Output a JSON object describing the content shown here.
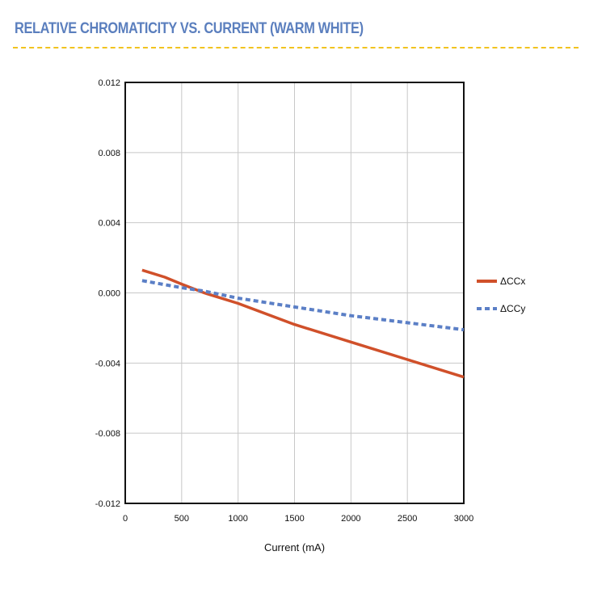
{
  "header": {
    "title": "RELATIVE CHROMATICITY VS. CURRENT (WARM WHITE)",
    "rule_color": "#f1c31f",
    "title_color": "#5b7fbe"
  },
  "chart_data": {
    "type": "line",
    "title": "",
    "xlabel": "Current (mA)",
    "ylabel": "",
    "xlim": [
      0,
      3000
    ],
    "ylim": [
      -0.012,
      0.012
    ],
    "x_ticks": [
      "0",
      "500",
      "1000",
      "1500",
      "2000",
      "2500",
      "3000"
    ],
    "y_ticks": [
      "0.012",
      "0.008",
      "0.004",
      "0.000",
      "-0.004",
      "-0.008",
      "-0.012"
    ],
    "grid": true,
    "legend_position": "right",
    "series": [
      {
        "name": "ΔCCx",
        "color": "#d0502a",
        "style": "solid",
        "x": [
          150,
          350,
          500,
          700,
          1000,
          1500,
          2000,
          2500,
          3000
        ],
        "y": [
          0.0013,
          0.0009,
          0.0005,
          0.0,
          -0.0006,
          -0.0018,
          -0.0028,
          -0.0038,
          -0.0048
        ]
      },
      {
        "name": "ΔCCy",
        "color": "#5b7fc6",
        "style": "dashed",
        "x": [
          150,
          500,
          700,
          1000,
          1500,
          2000,
          2500,
          3000
        ],
        "y": [
          0.0007,
          0.0003,
          0.0001,
          -0.0003,
          -0.0008,
          -0.0013,
          -0.0017,
          -0.0021
        ]
      }
    ]
  }
}
